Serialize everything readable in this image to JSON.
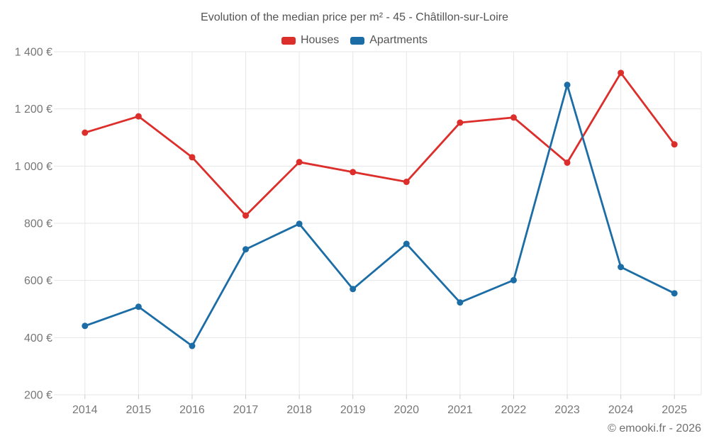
{
  "title": "Evolution of the median price per m² - 45 - Châtillon-sur-Loire",
  "footer": "© emooki.fr - 2026",
  "chart_data": {
    "type": "line",
    "title": "Evolution of the median price per m² - 45 - Châtillon-sur-Loire",
    "categories": [
      "2014",
      "2015",
      "2016",
      "2017",
      "2018",
      "2019",
      "2020",
      "2021",
      "2022",
      "2023",
      "2024",
      "2025"
    ],
    "series": [
      {
        "name": "Houses",
        "color": "#dc2e2a",
        "values": [
          1117,
          1174,
          1031,
          827,
          1014,
          979,
          945,
          1152,
          1170,
          1012,
          1326,
          1076
        ]
      },
      {
        "name": "Apartments",
        "color": "#1c6da6",
        "values": [
          441,
          508,
          371,
          709,
          798,
          570,
          728,
          523,
          601,
          1284,
          647,
          555
        ]
      }
    ],
    "ylim": [
      200,
      1400
    ],
    "ytick_step": 200,
    "ytick_labels": [
      "200 €",
      "400 €",
      "600 €",
      "800 €",
      "1 000 €",
      "1 200 €",
      "1 400 €"
    ],
    "xlabel": "",
    "ylabel": "",
    "grid": true,
    "legend_position": "top",
    "marker": "circle",
    "grid_color": "#e6e6e6",
    "tick_color": "#cccccc",
    "axis_text_color": "#777777"
  }
}
